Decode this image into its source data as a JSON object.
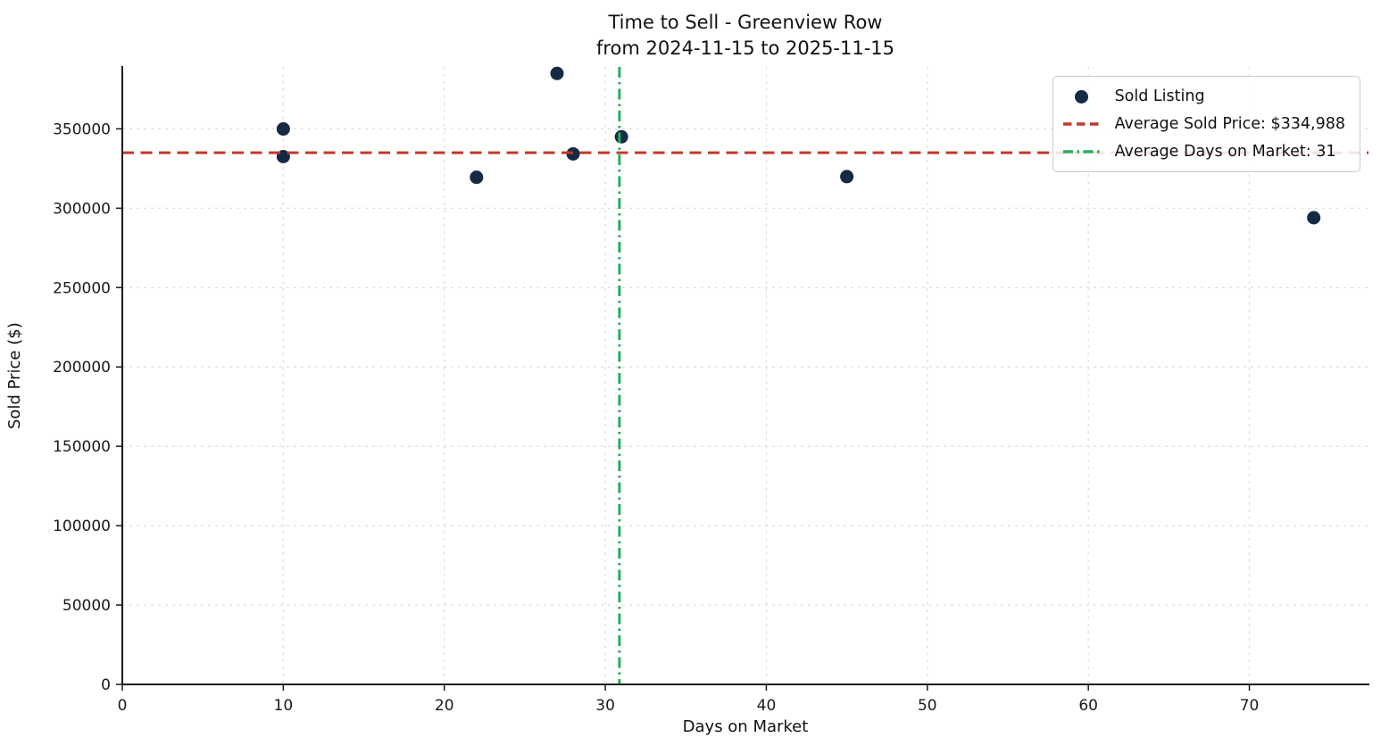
{
  "chart_data": {
    "type": "scatter",
    "title": "Time to Sell - Greenview Row",
    "subtitle": "from 2024-11-15 to 2025-11-15",
    "xlabel": "Days on Market",
    "ylabel": "Sold Price ($)",
    "xlim": [
      0,
      77.4
    ],
    "ylim": [
      0,
      389000
    ],
    "xticks": [
      0,
      10,
      20,
      30,
      40,
      50,
      60,
      70
    ],
    "yticks": [
      0,
      50000,
      100000,
      150000,
      200000,
      250000,
      300000,
      350000
    ],
    "grid": true,
    "legend_position": "upper right",
    "series": [
      {
        "name": "Sold Listing",
        "type": "scatter",
        "points": [
          [
            10,
            349900
          ],
          [
            10,
            332500
          ],
          [
            22,
            319500
          ],
          [
            27,
            384900
          ],
          [
            28,
            334200
          ],
          [
            31,
            345000
          ],
          [
            45,
            319900
          ],
          [
            74,
            294000
          ]
        ]
      }
    ],
    "reference_lines": [
      {
        "name": "average-sold-price",
        "orientation": "horizontal",
        "value": 334988,
        "style": "dashed",
        "color": "#c0392b",
        "label": "Average Sold Price: $334,988"
      },
      {
        "name": "average-days-on-market",
        "orientation": "vertical",
        "value": 30.875,
        "style": "dashdot",
        "color": "#27ae60",
        "label": "Average Days on Market: 31"
      }
    ],
    "legend": [
      "Sold Listing",
      "Average Sold Price: $334,988",
      "Average Days on Market: 31"
    ],
    "colors": {
      "point": "#142a45",
      "avg_price_line": "#c0392b",
      "avg_days_line": "#27ae60",
      "grid": "#dcdcdc",
      "axis": "#1a1a1a",
      "text": "#111111"
    }
  }
}
